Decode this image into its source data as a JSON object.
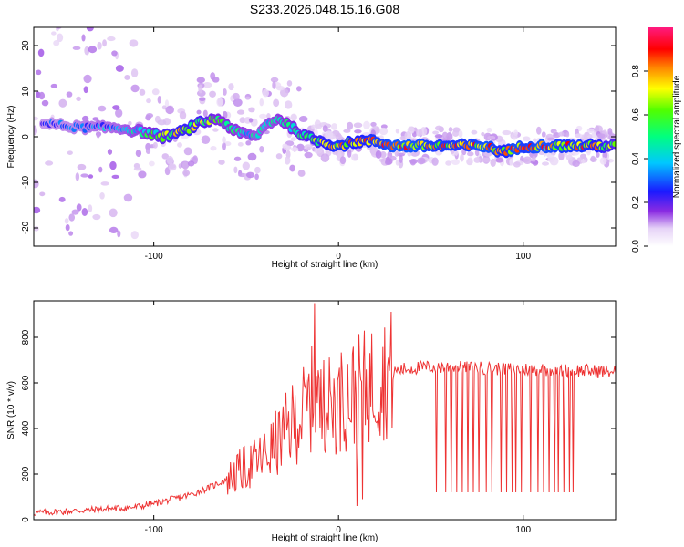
{
  "chart_data": [
    {
      "type": "heatmap",
      "title": "S233.2026.048.15.16.G08",
      "xlabel": "Height of straight line (km)",
      "ylabel": "Frequency (Hz)",
      "xlim": [
        -165,
        150
      ],
      "ylim": [
        -24,
        24
      ],
      "xticks": [
        -100,
        0,
        100
      ],
      "yticks": [
        -20,
        -10,
        0,
        10,
        20
      ],
      "xtick_labels": [
        "-100",
        "0",
        "100"
      ],
      "ytick_labels": [
        "-20",
        "-10",
        "0",
        "10",
        "20"
      ],
      "colorbar": {
        "label": "Normalized spectral amplitude",
        "range": [
          0,
          1
        ],
        "ticks": [
          0.0,
          0.2,
          0.4,
          0.6,
          0.8
        ],
        "tick_labels": [
          "0.0",
          "0.2",
          "0.4",
          "0.6",
          "0.8"
        ],
        "colormap": [
          "#ffffff",
          "#d8b8f0",
          "#8a2be2",
          "#2020ff",
          "#00c8ff",
          "#00ff80",
          "#40ff00",
          "#ffff00",
          "#ff8000",
          "#ff0000",
          "#ff1080"
        ]
      },
      "ridge": {
        "description_points_x": [
          -160,
          -140,
          -120,
          -105,
          -95,
          -85,
          -75,
          -65,
          -55,
          -45,
          -38,
          -32,
          -25,
          -18,
          -10,
          0,
          10,
          20,
          30,
          40,
          50,
          60,
          70,
          80,
          85,
          90,
          95,
          100,
          110,
          120,
          130,
          140,
          150
        ],
        "freq": [
          3,
          2,
          2,
          1,
          0,
          1,
          3,
          4,
          1,
          0,
          3,
          4,
          2,
          0,
          -1,
          -2,
          -1,
          -1,
          -2,
          -2,
          -2,
          -2,
          -2,
          -2,
          -3,
          -3,
          -3,
          -2,
          -2,
          -2,
          -2,
          -2,
          -2
        ],
        "amplitude": [
          0.35,
          0.4,
          0.45,
          0.55,
          0.7,
          0.8,
          0.75,
          0.6,
          0.55,
          0.5,
          0.5,
          0.55,
          0.6,
          0.7,
          0.8,
          0.9,
          0.85,
          0.9,
          0.95,
          0.95,
          0.9,
          0.9,
          0.9,
          0.95,
          0.9,
          0.85,
          0.95,
          0.9,
          0.95,
          0.9,
          0.9,
          0.85,
          0.7
        ]
      }
    },
    {
      "type": "line",
      "xlabel": "Height of straight line (km)",
      "ylabel": "SNR (10 * v/v)",
      "xlim": [
        -165,
        150
      ],
      "ylim": [
        0,
        960
      ],
      "xticks": [
        -100,
        0,
        100
      ],
      "yticks": [
        0,
        200,
        400,
        600,
        800
      ],
      "xtick_labels": [
        "-100",
        "0",
        "100"
      ],
      "ytick_labels": [
        "0",
        "200",
        "400",
        "600",
        "800"
      ],
      "series": [
        {
          "name": "SNR",
          "color": "#ee3333",
          "x": [
            -165,
            -150,
            -140,
            -130,
            -120,
            -110,
            -100,
            -90,
            -80,
            -70,
            -60,
            -50,
            -45,
            -40,
            -35,
            -30,
            -25,
            -20,
            -15,
            -12,
            -10,
            -5,
            0,
            5,
            10,
            15,
            20,
            25,
            30,
            35,
            40,
            50,
            60,
            70,
            80,
            90,
            100,
            110,
            120,
            130,
            140,
            150
          ],
          "y": [
            30,
            35,
            40,
            45,
            50,
            55,
            70,
            90,
            110,
            140,
            180,
            230,
            250,
            280,
            320,
            370,
            420,
            460,
            520,
            560,
            480,
            500,
            520,
            540,
            560,
            580,
            610,
            630,
            650,
            660,
            665,
            670,
            670,
            665,
            665,
            660,
            660,
            660,
            655,
            655,
            650,
            650
          ],
          "spikes": [
            {
              "x": -13,
              "y": 950
            },
            {
              "x": -8,
              "y": 700
            },
            {
              "x": 2,
              "y": 650
            },
            {
              "x": 10,
              "y": 60
            },
            {
              "x": 13,
              "y": 90
            }
          ],
          "dips": [
            53,
            58,
            61,
            64,
            67,
            70,
            73,
            76,
            80,
            83,
            88,
            91,
            94,
            96,
            99,
            104,
            108,
            111,
            114,
            117,
            119,
            122,
            125,
            127
          ],
          "dip_value": 120
        }
      ]
    }
  ]
}
